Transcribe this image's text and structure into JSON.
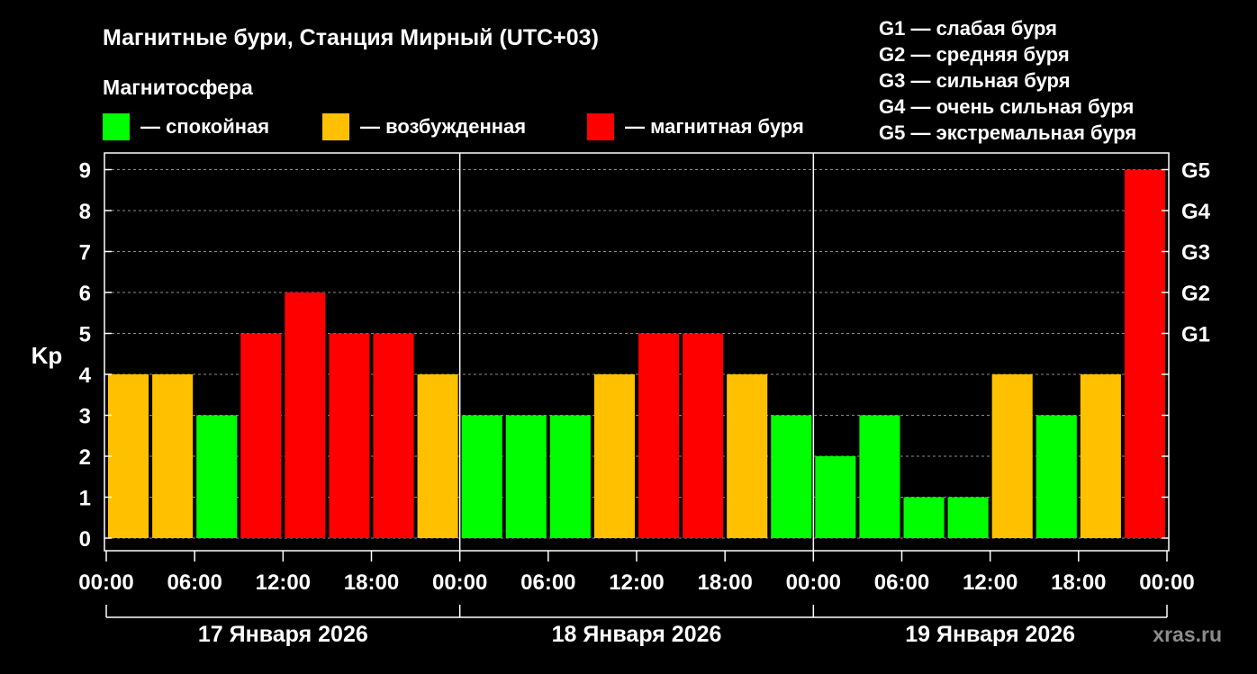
{
  "title": "Магнитные бури, Станция Мирный (UTC+03)",
  "legend": {
    "heading": "Магнитосфера",
    "items": [
      {
        "label": "— спокойная",
        "color": "#00ff00"
      },
      {
        "label": "— возбужденная",
        "color": "#ffc000"
      },
      {
        "label": "— магнитная буря",
        "color": "#ff0000"
      }
    ]
  },
  "g_scale": [
    "G1 — слабая буря",
    "G2 — средняя буря",
    "G3 — сильная буря",
    "G4 — очень сильная буря",
    "G5 — экстремальная буря"
  ],
  "watermark": "xras.ru",
  "chart_data": {
    "type": "bar",
    "ylabel": "Kp",
    "ylim": [
      0,
      9
    ],
    "y_ticks": [
      "0",
      "1",
      "2",
      "3",
      "4",
      "5",
      "6",
      "7",
      "8",
      "9"
    ],
    "right_ticks": [
      {
        "value": 5,
        "label": "G1"
      },
      {
        "value": 6,
        "label": "G2"
      },
      {
        "value": 7,
        "label": "G3"
      },
      {
        "value": 8,
        "label": "G4"
      },
      {
        "value": 9,
        "label": "G5"
      }
    ],
    "x_ticks": [
      "00:00",
      "06:00",
      "12:00",
      "18:00",
      "00:00",
      "06:00",
      "12:00",
      "18:00",
      "00:00",
      "06:00",
      "12:00",
      "18:00",
      "00:00"
    ],
    "days": [
      "17 Января 2026",
      "18 Января 2026",
      "19 Января 2026"
    ],
    "interval_hours": 3,
    "grid": "dashed horizontal",
    "values": [
      4,
      4,
      3,
      5,
      6,
      5,
      5,
      4,
      3,
      3,
      3,
      4,
      5,
      5,
      4,
      3,
      2,
      3,
      1,
      1,
      4,
      3,
      4,
      9
    ],
    "colors": [
      "#ffc000",
      "#ffc000",
      "#00ff00",
      "#ff0000",
      "#ff0000",
      "#ff0000",
      "#ff0000",
      "#ffc000",
      "#00ff00",
      "#00ff00",
      "#00ff00",
      "#ffc000",
      "#ff0000",
      "#ff0000",
      "#ffc000",
      "#00ff00",
      "#00ff00",
      "#00ff00",
      "#00ff00",
      "#00ff00",
      "#ffc000",
      "#00ff00",
      "#ffc000",
      "#ff0000"
    ]
  }
}
